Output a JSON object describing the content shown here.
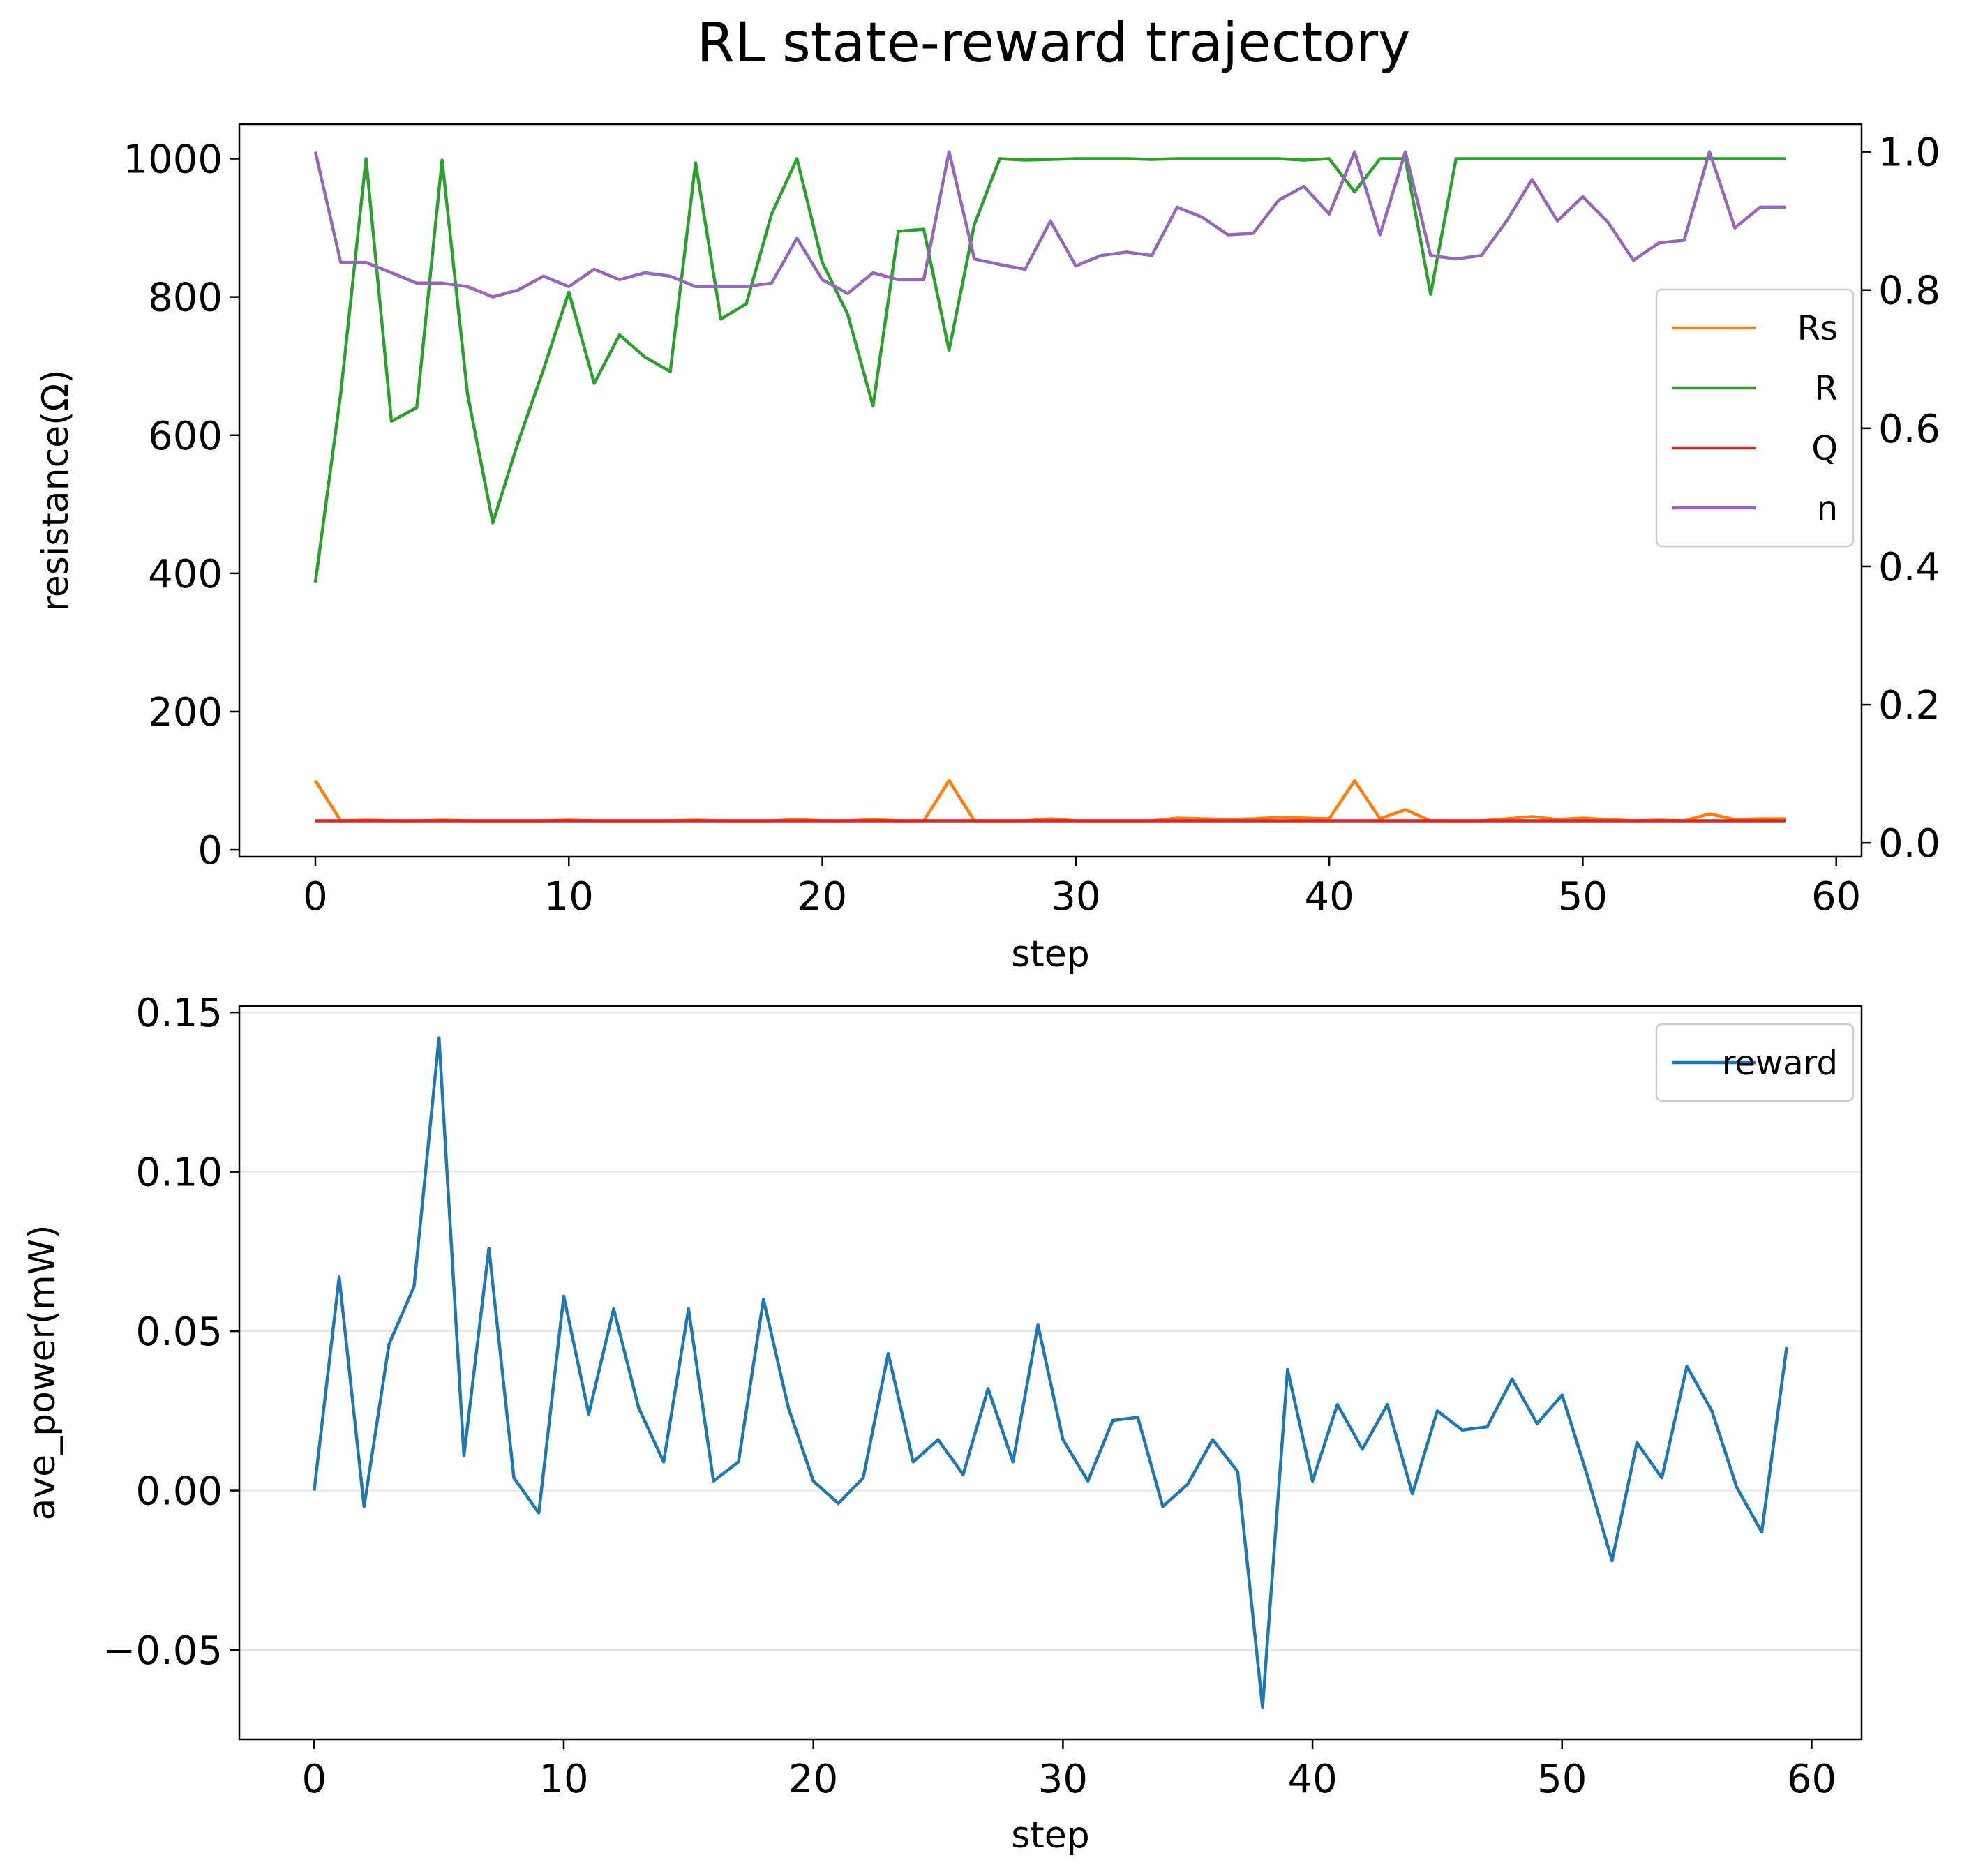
{
  "figure": {
    "title": "RL state-reward trajectory"
  },
  "chart_data": [
    {
      "type": "line",
      "panel": "top",
      "xlabel": "step",
      "ylabel": "resistance(Ω)",
      "xlim": [
        -3,
        61
      ],
      "ylim": [
        -10,
        1050
      ],
      "y2lim": [
        -0.02,
        1.04
      ],
      "xticks": [
        "0",
        "10",
        "20",
        "30",
        "40",
        "50",
        "60"
      ],
      "yticks": [
        "0",
        "200",
        "400",
        "600",
        "800",
        "1000"
      ],
      "y2ticks": [
        "0.0",
        "0.2",
        "0.4",
        "0.6",
        "0.8",
        "1.0"
      ],
      "legend_position": "center-right",
      "grid": false,
      "x": [
        0,
        1,
        2,
        3,
        4,
        5,
        6,
        7,
        8,
        9,
        10,
        11,
        12,
        13,
        14,
        15,
        16,
        17,
        18,
        19,
        20,
        21,
        22,
        23,
        24,
        25,
        26,
        27,
        28,
        29,
        30,
        31,
        32,
        33,
        34,
        35,
        36,
        37,
        38,
        39,
        40,
        41,
        42,
        43,
        44,
        45,
        46,
        47,
        48,
        49,
        50,
        51,
        52,
        53,
        54,
        55,
        56,
        57,
        58
      ],
      "series": [
        {
          "name": "Rs",
          "axis": "left",
          "color": "#ff7f0e",
          "values": [
            100,
            42,
            43,
            42,
            42,
            43,
            42,
            42,
            42,
            42,
            43,
            42,
            42,
            42,
            42,
            43,
            42,
            42,
            42,
            44,
            42,
            42,
            44,
            42,
            42,
            100,
            42,
            42,
            42,
            45,
            42,
            42,
            42,
            42,
            46,
            45,
            44,
            45,
            47,
            46,
            45,
            100,
            45,
            58,
            42,
            42,
            42,
            45,
            48,
            44,
            46,
            44,
            42,
            43,
            42,
            52,
            44,
            45,
            45
          ]
        },
        {
          "name": "R",
          "axis": "left",
          "color": "#2ca02c",
          "values": [
            387,
            660,
            1000,
            620,
            640,
            998,
            660,
            473,
            590,
            695,
            807,
            675,
            745,
            713,
            692,
            994,
            768,
            790,
            920,
            1000,
            850,
            775,
            642,
            895,
            898,
            723,
            905,
            1000,
            998,
            999,
            1000,
            1000,
            1000,
            999,
            1000,
            1000,
            1000,
            1000,
            1000,
            998,
            1000,
            952,
            1000,
            1000,
            804,
            1000,
            1000,
            1000,
            1000,
            1000,
            1000,
            1000,
            1000,
            1000,
            1000,
            1000,
            1000,
            1000,
            1000
          ]
        },
        {
          "name": "Q",
          "axis": "left",
          "color": "#d62728",
          "values": [
            42,
            42,
            42,
            42,
            42,
            42,
            42,
            42,
            42,
            42,
            42,
            42,
            42,
            42,
            42,
            42,
            42,
            42,
            42,
            42,
            42,
            42,
            42,
            42,
            42,
            42,
            42,
            42,
            42,
            42,
            42,
            42,
            42,
            42,
            42,
            42,
            42,
            42,
            42,
            42,
            42,
            42,
            42,
            42,
            42,
            42,
            42,
            42,
            42,
            42,
            42,
            42,
            42,
            42,
            42,
            42,
            42,
            42,
            42
          ]
        },
        {
          "name": "n",
          "axis": "right",
          "color": "#9467bd",
          "values": [
            1.0,
            0.84,
            0.84,
            0.825,
            0.81,
            0.81,
            0.805,
            0.79,
            0.8,
            0.82,
            0.805,
            0.83,
            0.815,
            0.825,
            0.82,
            0.805,
            0.805,
            0.805,
            0.81,
            0.875,
            0.815,
            0.795,
            0.825,
            0.815,
            0.815,
            1.0,
            0.845,
            0.837,
            0.83,
            0.9,
            0.835,
            0.85,
            0.855,
            0.85,
            0.92,
            0.905,
            0.88,
            0.882,
            0.93,
            0.95,
            0.91,
            1.0,
            0.88,
            1.0,
            0.85,
            0.845,
            0.85,
            0.9,
            0.96,
            0.9,
            0.935,
            0.898,
            0.843,
            0.868,
            0.872,
            1.0,
            0.89,
            0.92,
            0.92
          ]
        }
      ]
    },
    {
      "type": "line",
      "panel": "bottom",
      "xlabel": "step",
      "ylabel": "ave_power(mW)",
      "xlim": [
        -3,
        62
      ],
      "ylim": [
        -0.078,
        0.152
      ],
      "xticks": [
        "0",
        "10",
        "20",
        "30",
        "40",
        "50",
        "60"
      ],
      "yticks": [
        "−0.05",
        "0.00",
        "0.05",
        "0.10",
        "0.15"
      ],
      "legend_position": "top-right",
      "grid": true,
      "x": [
        0,
        1,
        2,
        3,
        4,
        5,
        6,
        7,
        8,
        9,
        10,
        11,
        12,
        13,
        14,
        15,
        16,
        17,
        18,
        19,
        20,
        21,
        22,
        23,
        24,
        25,
        26,
        27,
        28,
        29,
        30,
        31,
        32,
        33,
        34,
        35,
        36,
        37,
        38,
        39,
        40,
        41,
        42,
        43,
        44,
        45,
        46,
        47,
        48,
        49,
        50,
        51,
        52,
        53,
        54,
        55,
        56,
        57,
        58,
        59
      ],
      "series": [
        {
          "name": "reward",
          "color": "#1f77b4",
          "values": [
            0.0,
            0.067,
            -0.005,
            0.046,
            0.064,
            0.142,
            0.011,
            0.076,
            0.004,
            -0.007,
            0.061,
            0.024,
            0.057,
            0.026,
            0.009,
            0.057,
            0.003,
            0.009,
            0.06,
            0.026,
            0.003,
            -0.004,
            0.004,
            0.043,
            0.009,
            0.016,
            0.005,
            0.032,
            0.009,
            0.052,
            0.016,
            0.003,
            0.022,
            0.023,
            -0.005,
            0.002,
            0.016,
            0.006,
            -0.068,
            0.038,
            0.003,
            0.027,
            0.013,
            0.027,
            -0.001,
            0.025,
            0.019,
            0.02,
            0.035,
            0.021,
            0.03,
            0.005,
            -0.022,
            0.015,
            0.004,
            0.039,
            0.025,
            0.001,
            -0.013,
            0.045
          ]
        }
      ]
    }
  ]
}
